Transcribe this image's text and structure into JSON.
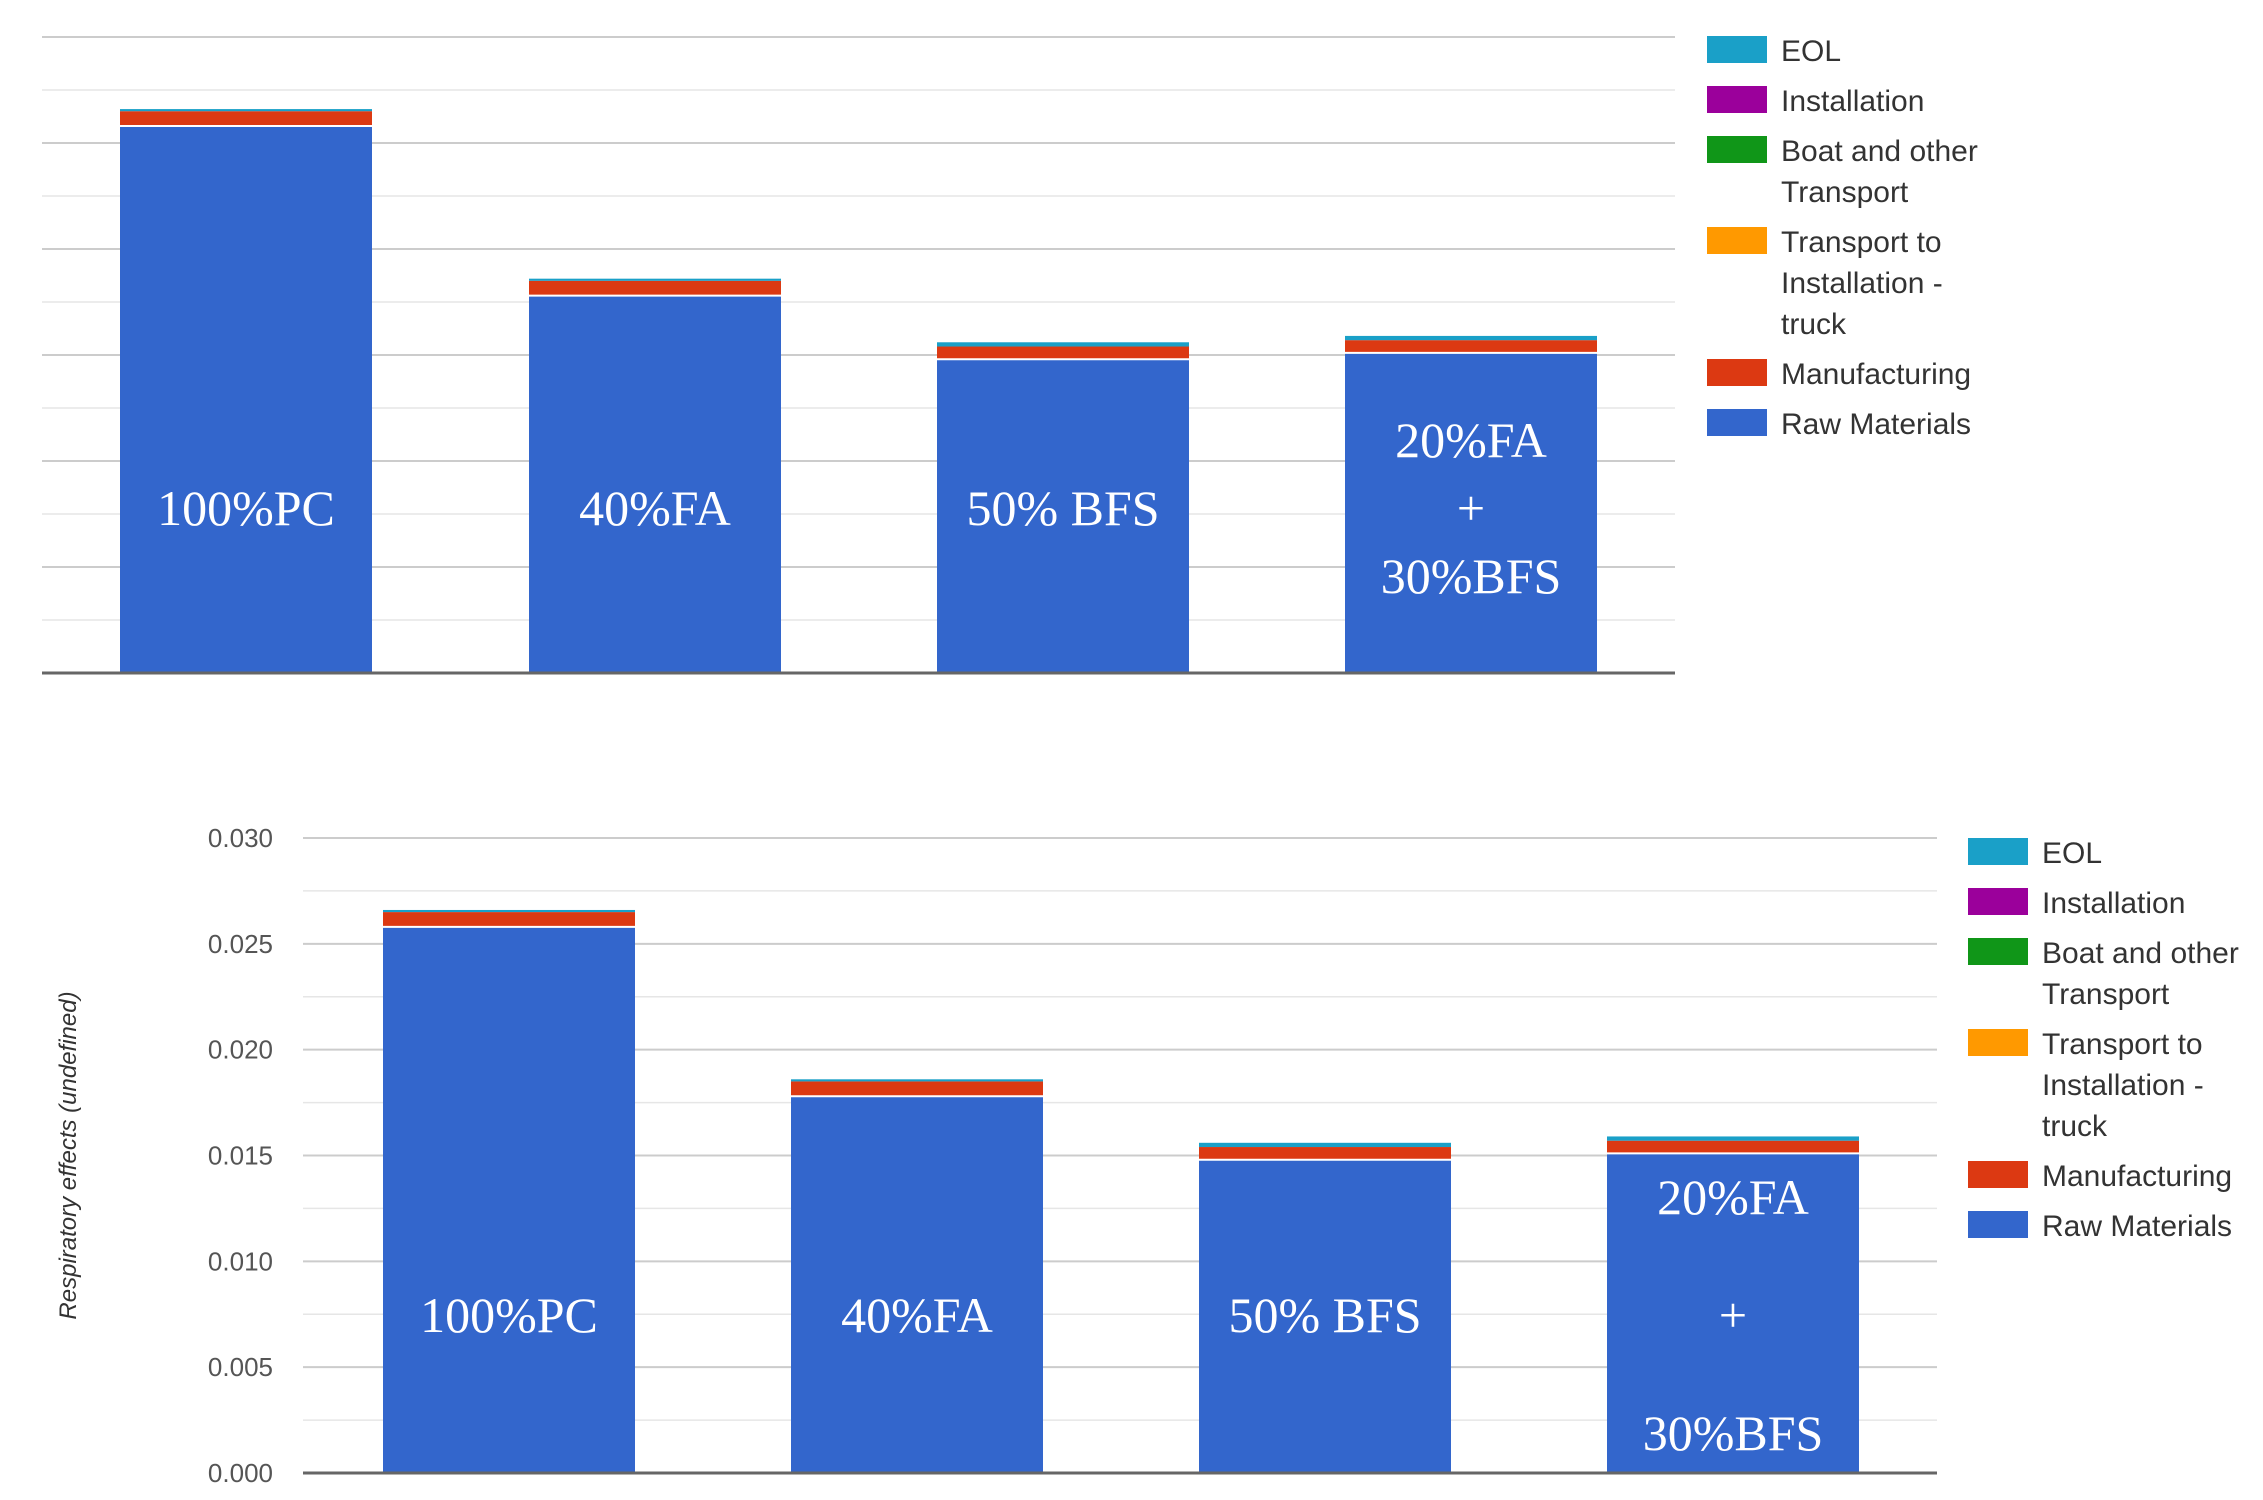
{
  "legend_colors": {
    "EOL": "#1aa0c8",
    "Installation": "#9b009b",
    "Boat and other Transport": "#109618",
    "Transport to Installation - truck": "#ff9900",
    "Manufacturing": "#dc3912",
    "Raw Materials": "#3366cc"
  },
  "chart_data": [
    {
      "type": "bar",
      "stacked": true,
      "title": "",
      "xlabel": "",
      "ylabel": "",
      "ylim": [
        0,
        0.03
      ],
      "y_ticks_printed": false,
      "grid": true,
      "legend_position": "right",
      "categories": [
        "100%PC",
        "40%FA",
        "50% BFS",
        "20%FA + 30%BFS"
      ],
      "bar_labels": [
        [
          "100%PC"
        ],
        [
          "40%FA"
        ],
        [
          "50% BFS"
        ],
        [
          "20%FA",
          "+",
          "30%BFS"
        ]
      ],
      "legend_lines": [
        {
          "series": "EOL",
          "lines": [
            "EOL"
          ]
        },
        {
          "series": "Installation",
          "lines": [
            "Installation"
          ]
        },
        {
          "series": "Boat and other Transport",
          "lines": [
            "Boat and other",
            "Transport"
          ]
        },
        {
          "series": "Transport to Installation - truck",
          "lines": [
            "Transport to",
            "Installation -",
            "truck"
          ]
        },
        {
          "series": "Manufacturing",
          "lines": [
            "Manufacturing"
          ]
        },
        {
          "series": "Raw Materials",
          "lines": [
            "Raw Materials"
          ]
        }
      ],
      "series": [
        {
          "name": "Raw Materials",
          "values": [
            0.0258,
            0.0178,
            0.0148,
            0.0151
          ]
        },
        {
          "name": "Manufacturing",
          "values": [
            0.0007,
            0.0007,
            0.0006,
            0.0006
          ]
        },
        {
          "name": "Transport to Installation - truck",
          "values": [
            0.0,
            0.0,
            0.0,
            0.0
          ]
        },
        {
          "name": "Boat and other Transport",
          "values": [
            0.0,
            0.0,
            0.0,
            0.0
          ]
        },
        {
          "name": "Installation",
          "values": [
            0.0,
            0.0,
            0.0,
            0.0
          ]
        },
        {
          "name": "EOL",
          "values": [
            0.0001,
            0.0001,
            0.0002,
            0.0002
          ]
        }
      ]
    },
    {
      "type": "bar",
      "stacked": true,
      "title": "",
      "xlabel": "",
      "ylabel": "Respiratory effects (undefined)",
      "ylim": [
        0,
        0.03
      ],
      "yticks": [
        "0.000",
        "0.005",
        "0.010",
        "0.015",
        "0.020",
        "0.025",
        "0.030"
      ],
      "y_ticks_printed": true,
      "grid": true,
      "legend_position": "right",
      "categories": [
        "100%PC",
        "40%FA",
        "50% BFS",
        "20%FA + 30%BFS"
      ],
      "bar_labels": [
        [
          "100%PC"
        ],
        [
          "40%FA"
        ],
        [
          "50% BFS"
        ],
        [
          "20%FA",
          "+",
          "30%BFS"
        ]
      ],
      "legend_lines": [
        {
          "series": "EOL",
          "lines": [
            "EOL"
          ]
        },
        {
          "series": "Installation",
          "lines": [
            "Installation"
          ]
        },
        {
          "series": "Boat and other Transport",
          "lines": [
            "Boat and other",
            "Transport"
          ]
        },
        {
          "series": "Transport to Installation - truck",
          "lines": [
            "Transport to",
            "Installation -",
            "truck"
          ]
        },
        {
          "series": "Manufacturing",
          "lines": [
            "Manufacturing"
          ]
        },
        {
          "series": "Raw Materials",
          "lines": [
            "Raw Materials"
          ]
        }
      ],
      "series": [
        {
          "name": "Raw Materials",
          "values": [
            0.0258,
            0.0178,
            0.0148,
            0.0151
          ]
        },
        {
          "name": "Manufacturing",
          "values": [
            0.0007,
            0.0007,
            0.0006,
            0.0006
          ]
        },
        {
          "name": "Transport to Installation - truck",
          "values": [
            0.0,
            0.0,
            0.0,
            0.0
          ]
        },
        {
          "name": "Boat and other Transport",
          "values": [
            0.0,
            0.0,
            0.0,
            0.0
          ]
        },
        {
          "name": "Installation",
          "values": [
            0.0,
            0.0,
            0.0,
            0.0
          ]
        },
        {
          "name": "EOL",
          "values": [
            0.0001,
            0.0001,
            0.0002,
            0.0002
          ]
        }
      ]
    }
  ]
}
